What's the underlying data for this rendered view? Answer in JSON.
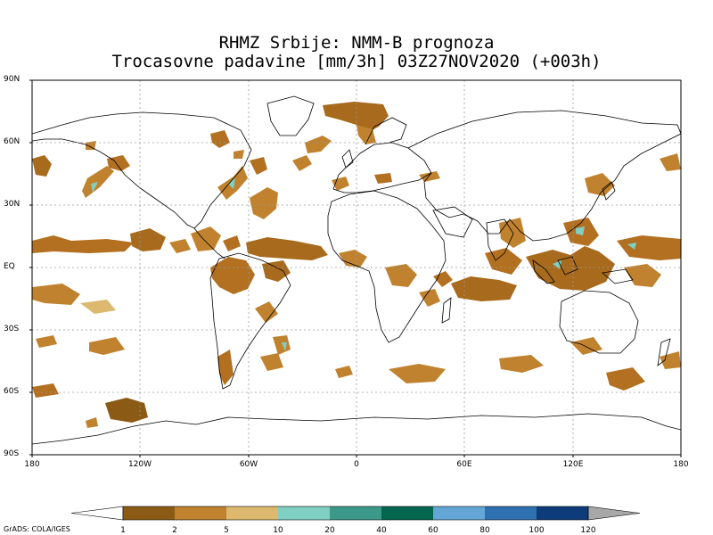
{
  "title_line1": "RHMZ Srbije: NMM-B prognoza",
  "title_line2": "Trocasovne padavine [mm/3h] 03Z27NOV2020 (+003h)",
  "lat_labels": [
    "90N",
    "60N",
    "30N",
    "EQ",
    "30S",
    "60S",
    "90S"
  ],
  "lon_labels": [
    "180",
    "120W",
    "60W",
    "0",
    "60E",
    "120E",
    "180"
  ],
  "colorbar": {
    "labels": [
      "1",
      "2",
      "5",
      "10",
      "20",
      "40",
      "60",
      "80",
      "100",
      "120"
    ],
    "colors": [
      "#8B5A14",
      "#C0822E",
      "#DCB96E",
      "#80CFC3",
      "#3C9889",
      "#00664E",
      "#64A6D6",
      "#2E70B0",
      "#0E3C7A"
    ],
    "under_color": "#FFFFFF",
    "over_color": "#A8A8A8"
  },
  "credit": "GrADS: COLA/IGES"
}
